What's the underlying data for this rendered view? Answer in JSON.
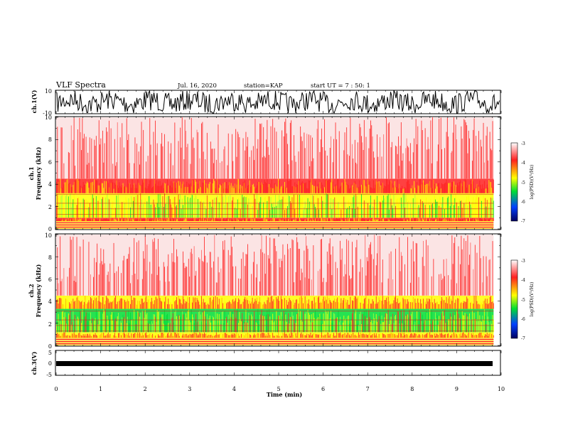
{
  "header": {
    "title": "VLF Spectra",
    "date": "Jul. 16, 2020",
    "station": "station=KAP",
    "start_ut": "start UT =   7 : 50: 1"
  },
  "colors": {
    "spectrum": [
      "#ffffff",
      "#ff2020",
      "#ffff00",
      "#00dd33",
      "#0040ff",
      "#000060"
    ],
    "axes": "#000000"
  },
  "chart_data": [
    {
      "type": "line",
      "name": "ch1-waveform",
      "ylabel": "ch.1(V)",
      "ylim": [
        -10,
        10
      ],
      "yticks": [
        "10",
        "-10"
      ],
      "xlim": [
        0,
        10
      ]
    },
    {
      "type": "heatmap",
      "name": "ch1-spectrogram",
      "ylabel_top": "ch.1",
      "ylabel": "Frequency (kHz)",
      "ylim": [
        0,
        10
      ],
      "yticks": [
        "0",
        "2",
        "4",
        "6",
        "8",
        "10"
      ],
      "xlim": [
        0,
        10
      ],
      "data_end_min": 9.83,
      "colorbar": {
        "label": "log(PSD)(V²/Hz)",
        "range": [
          -7,
          -3
        ],
        "ticks": [
          "-3",
          "-4",
          "-5",
          "-6",
          "-7"
        ]
      },
      "band_profile": [
        {
          "kHz_range": [
            0,
            0.7
          ],
          "level": "lines"
        },
        {
          "kHz_range": [
            0.7,
            1.0
          ],
          "level": -4.0
        },
        {
          "kHz_range": [
            1.0,
            3.2
          ],
          "level": -4.8
        },
        {
          "kHz_range": [
            3.2,
            4.5
          ],
          "level": -4.1
        },
        {
          "kHz_range": [
            4.5,
            10
          ],
          "level": -3.4
        }
      ]
    },
    {
      "type": "heatmap",
      "name": "ch2-spectrogram",
      "ylabel_top": "ch.2",
      "ylabel": "Frequency (kHz)",
      "ylim": [
        0,
        10
      ],
      "yticks": [
        "0",
        "2",
        "4",
        "6",
        "8",
        "10"
      ],
      "xlim": [
        0,
        10
      ],
      "data_end_min": 9.83,
      "colorbar": {
        "label": "log(PSD)(V²/Hz)",
        "range": [
          -7,
          -3
        ],
        "ticks": [
          "-3",
          "-4",
          "-5",
          "-6",
          "-7"
        ]
      },
      "band_profile": [
        {
          "kHz_range": [
            0,
            0.7
          ],
          "level": "lines"
        },
        {
          "kHz_range": [
            0.7,
            1.2
          ],
          "level": -4.2
        },
        {
          "kHz_range": [
            1.2,
            3.3
          ],
          "level": -5.2
        },
        {
          "kHz_range": [
            3.3,
            4.5
          ],
          "level": -4.2
        },
        {
          "kHz_range": [
            4.5,
            10
          ],
          "level": -3.4
        }
      ]
    },
    {
      "type": "line",
      "name": "ch3-waveform",
      "ylabel": "ch.3(V)",
      "ylim": [
        -5,
        5
      ],
      "yticks": [
        "5",
        "0",
        "-5"
      ],
      "xlim": [
        0,
        10
      ],
      "xlabel": "Time (min)",
      "xticks": [
        "0",
        "1",
        "2",
        "3",
        "4",
        "5",
        "6",
        "7",
        "8",
        "9",
        "10"
      ]
    }
  ]
}
